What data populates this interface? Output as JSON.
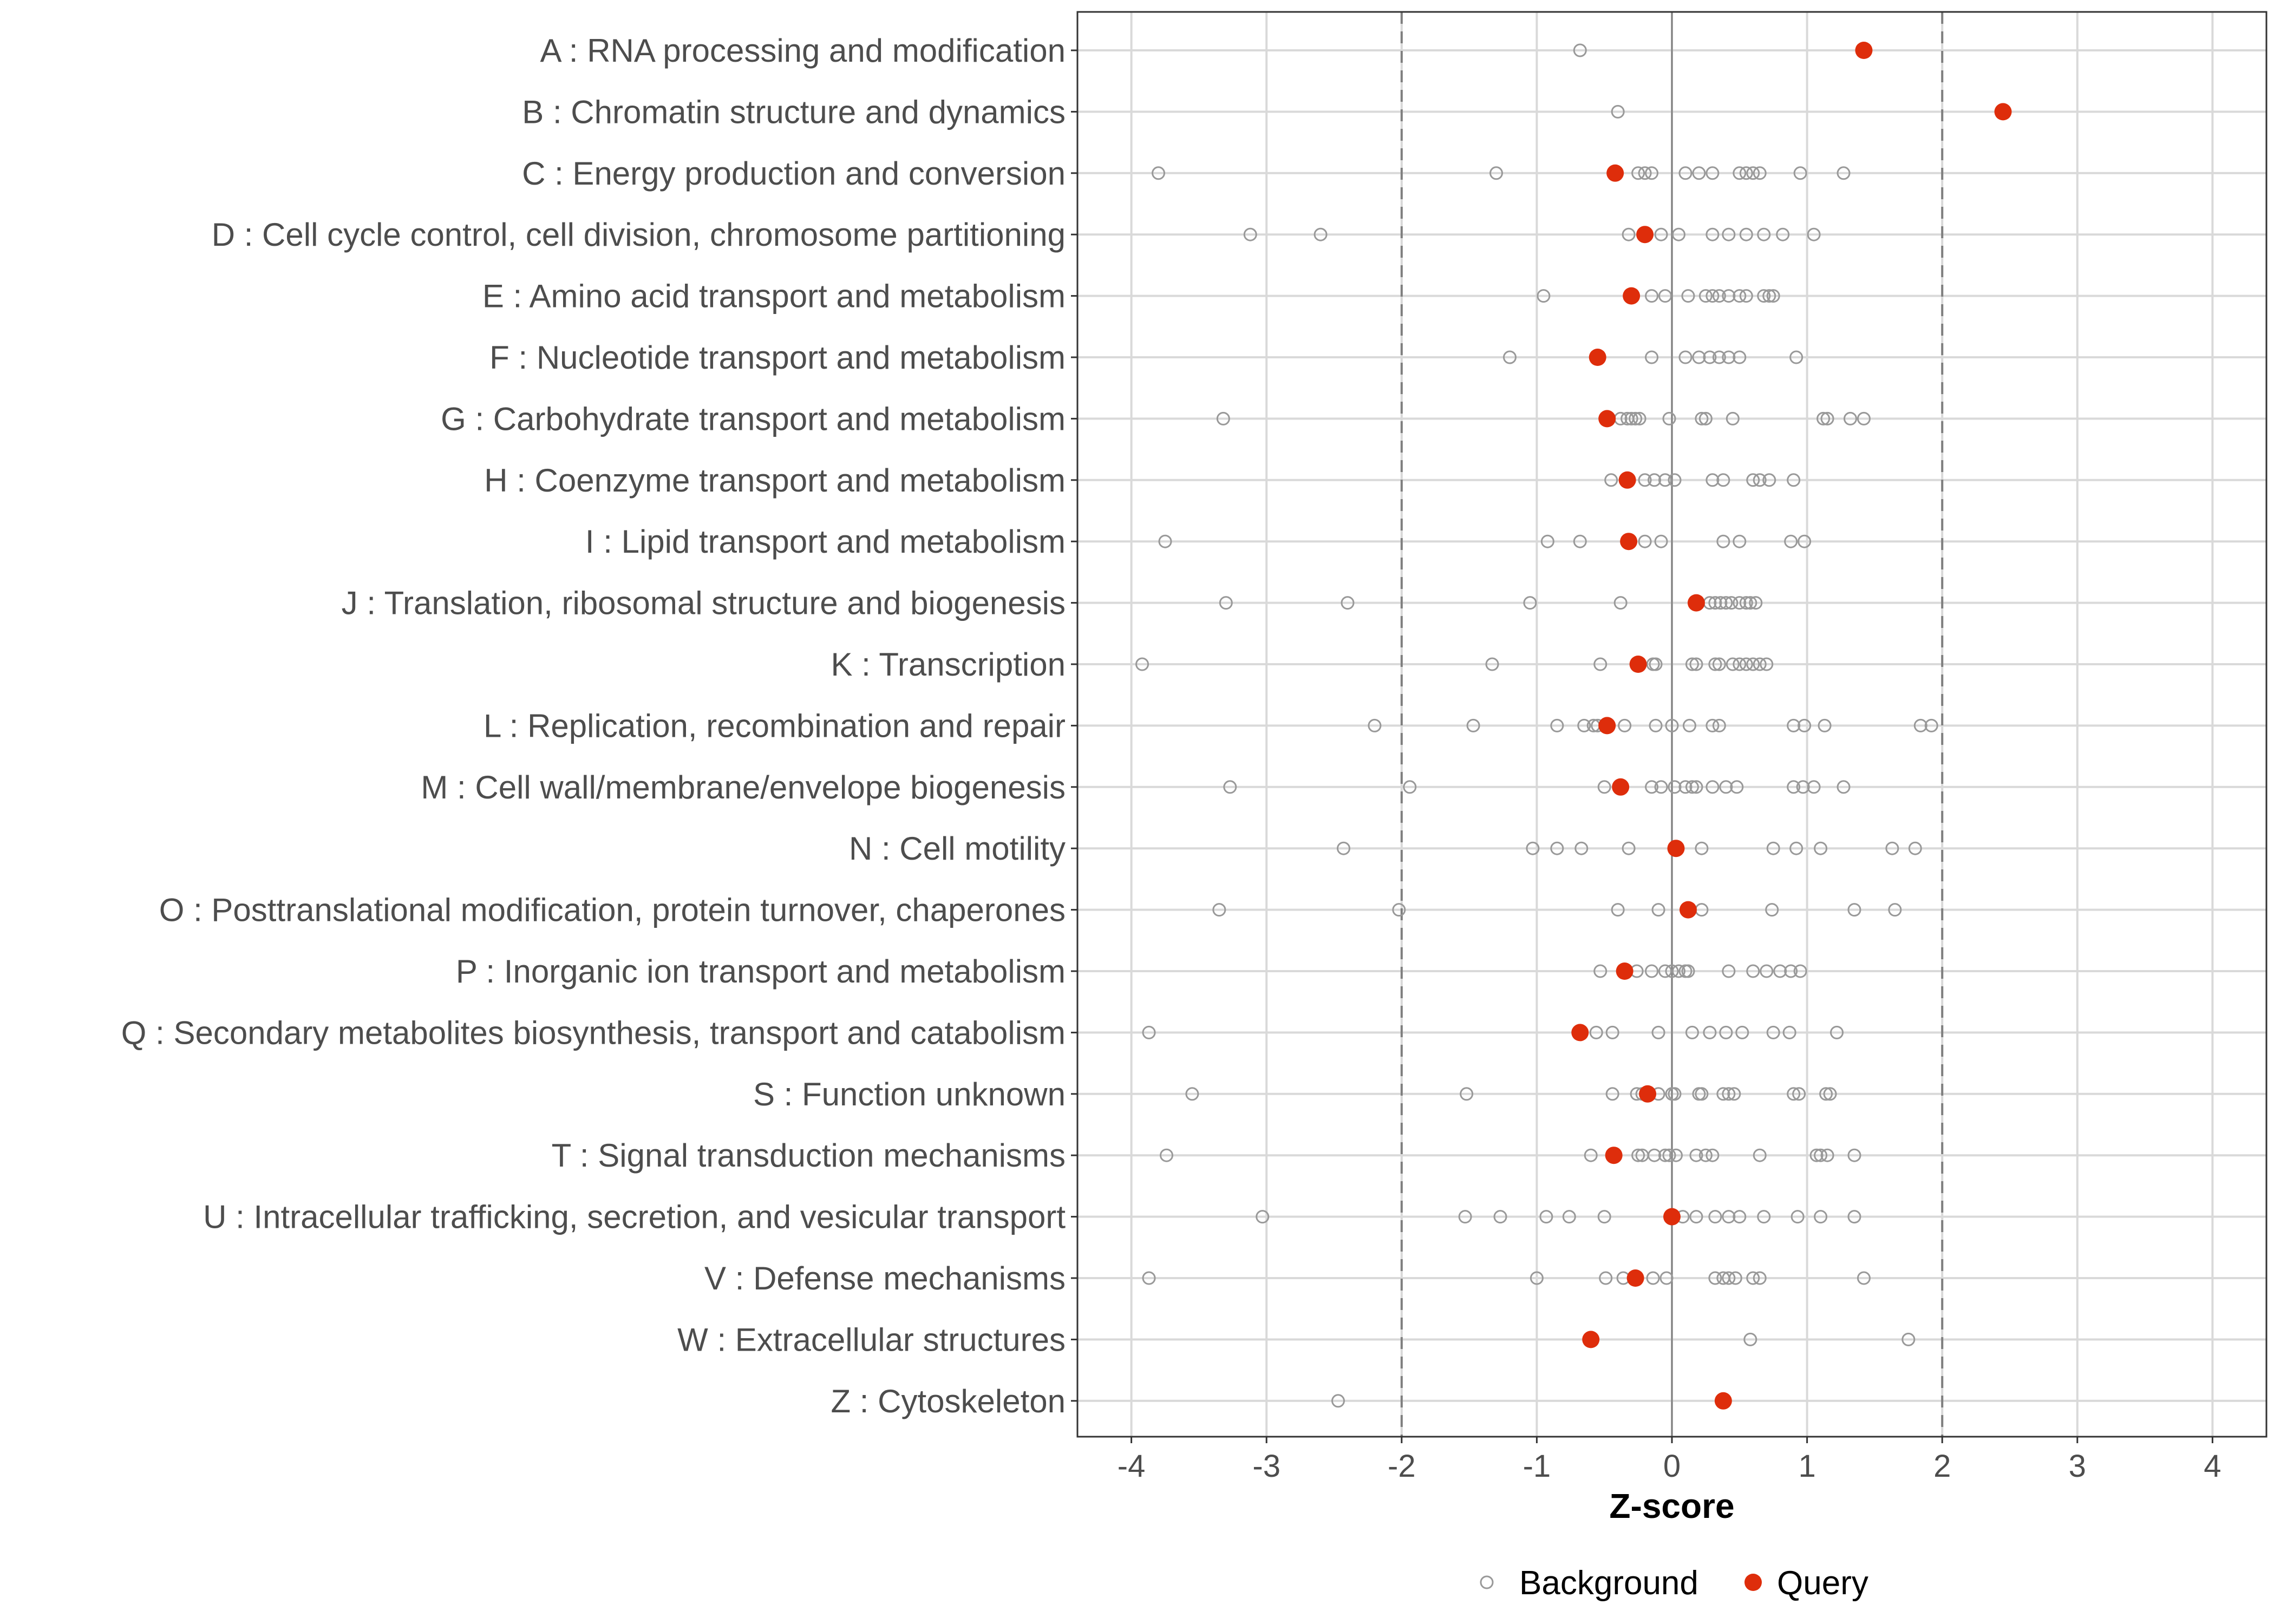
{
  "chart_data": {
    "type": "scatter",
    "xlabel": "Z-score",
    "xlim": [
      -4.4,
      4.4
    ],
    "x_ticks": [
      -4,
      -3,
      -2,
      -1,
      0,
      1,
      2,
      3,
      4
    ],
    "x_tick_labels": [
      "-4",
      "-3",
      "-2",
      "-1",
      "0",
      "1",
      "2",
      "3",
      "4"
    ],
    "threshold_lines": [
      -2,
      2
    ],
    "zero_line": 0,
    "grid": true,
    "legend": {
      "position": "bottom",
      "items": [
        {
          "label": "Background",
          "style": "open-circle"
        },
        {
          "label": "Query",
          "style": "filled-circle"
        }
      ]
    },
    "colors": {
      "query": "#de2d0b",
      "background": "#999999",
      "grid": "#d9d9d9",
      "threshold": "#7f7f7f",
      "zero": "#7f7f7f",
      "panel_border": "#333333",
      "text": "#4d4d4d"
    },
    "categories": [
      {
        "label": "A : RNA processing and modification",
        "query": 1.42,
        "background": [
          -0.68
        ]
      },
      {
        "label": "B : Chromatin structure and dynamics",
        "query": 2.45,
        "background": [
          -0.4
        ]
      },
      {
        "label": "C : Energy production and conversion",
        "query": -0.42,
        "background": [
          -3.8,
          -1.3,
          -0.25,
          -0.2,
          -0.15,
          0.1,
          0.2,
          0.3,
          0.5,
          0.55,
          0.6,
          0.65,
          0.95,
          1.27
        ]
      },
      {
        "label": "D : Cell cycle control, cell division, chromosome partitioning",
        "query": -0.2,
        "background": [
          -3.12,
          -2.6,
          -0.32,
          -0.08,
          0.05,
          0.3,
          0.42,
          0.55,
          0.68,
          0.82,
          1.05
        ]
      },
      {
        "label": "E : Amino acid transport and metabolism",
        "query": -0.3,
        "background": [
          -0.95,
          -0.15,
          -0.05,
          0.12,
          0.25,
          0.3,
          0.35,
          0.42,
          0.5,
          0.55,
          0.68,
          0.72,
          0.75
        ]
      },
      {
        "label": "F : Nucleotide transport and metabolism",
        "query": -0.55,
        "background": [
          -1.2,
          -0.15,
          0.1,
          0.2,
          0.28,
          0.35,
          0.42,
          0.5,
          0.92
        ]
      },
      {
        "label": "G : Carbohydrate transport and metabolism",
        "query": -0.48,
        "background": [
          -3.32,
          -0.38,
          -0.33,
          -0.3,
          -0.27,
          -0.24,
          -0.02,
          0.22,
          0.25,
          0.45,
          1.12,
          1.15,
          1.32,
          1.42
        ]
      },
      {
        "label": "H : Coenzyme transport and metabolism",
        "query": -0.33,
        "background": [
          -0.45,
          -0.2,
          -0.13,
          -0.05,
          0.02,
          0.3,
          0.38,
          0.6,
          0.65,
          0.72,
          0.9
        ]
      },
      {
        "label": "I : Lipid transport and metabolism",
        "query": -0.32,
        "background": [
          -3.75,
          -0.92,
          -0.68,
          -0.2,
          -0.08,
          0.38,
          0.5,
          0.88,
          0.98
        ]
      },
      {
        "label": "J : Translation, ribosomal structure and biogenesis",
        "query": 0.18,
        "background": [
          -3.3,
          -2.4,
          -1.05,
          -0.38,
          0.28,
          0.32,
          0.36,
          0.4,
          0.44,
          0.5,
          0.55,
          0.58,
          0.62
        ]
      },
      {
        "label": "K : Transcription",
        "query": -0.25,
        "background": [
          -3.92,
          -1.33,
          -0.53,
          -0.14,
          -0.12,
          0.15,
          0.18,
          0.32,
          0.35,
          0.45,
          0.5,
          0.55,
          0.6,
          0.65,
          0.7
        ]
      },
      {
        "label": "L : Replication, recombination and repair",
        "query": -0.48,
        "background": [
          -2.2,
          -1.47,
          -0.85,
          -0.65,
          -0.58,
          -0.55,
          -0.35,
          -0.12,
          0.0,
          0.13,
          0.3,
          0.35,
          0.9,
          0.98,
          1.13,
          1.84,
          1.92
        ]
      },
      {
        "label": "M : Cell wall/membrane/envelope biogenesis",
        "query": -0.38,
        "background": [
          -3.27,
          -1.94,
          -0.5,
          -0.15,
          -0.08,
          0.02,
          0.1,
          0.15,
          0.18,
          0.3,
          0.4,
          0.48,
          0.9,
          0.97,
          1.05,
          1.27
        ]
      },
      {
        "label": "N : Cell motility",
        "query": 0.03,
        "background": [
          -2.43,
          -1.03,
          -0.85,
          -0.67,
          -0.32,
          0.22,
          0.75,
          0.92,
          1.1,
          1.63,
          1.8
        ]
      },
      {
        "label": "O : Posttranslational modification, protein turnover, chaperones",
        "query": 0.12,
        "background": [
          -3.35,
          -2.02,
          -0.4,
          -0.1,
          0.22,
          0.74,
          1.35,
          1.65
        ]
      },
      {
        "label": "P : Inorganic ion transport and metabolism",
        "query": -0.35,
        "background": [
          -0.53,
          -0.26,
          -0.15,
          -0.05,
          0.0,
          0.05,
          0.1,
          0.12,
          0.42,
          0.6,
          0.7,
          0.8,
          0.88,
          0.95
        ]
      },
      {
        "label": "Q : Secondary metabolites biosynthesis, transport and catabolism",
        "query": -0.68,
        "background": [
          -3.87,
          -0.56,
          -0.44,
          -0.1,
          0.15,
          0.28,
          0.4,
          0.52,
          0.75,
          0.87,
          1.22
        ]
      },
      {
        "label": "S : Function unknown",
        "query": -0.18,
        "background": [
          -3.55,
          -1.52,
          -0.44,
          -0.26,
          -0.22,
          -0.1,
          0.0,
          0.02,
          0.2,
          0.22,
          0.38,
          0.42,
          0.46,
          0.9,
          0.94,
          1.14,
          1.17
        ]
      },
      {
        "label": "T : Signal transduction mechanisms",
        "query": -0.43,
        "background": [
          -3.74,
          -0.6,
          -0.25,
          -0.22,
          -0.13,
          -0.05,
          -0.02,
          0.03,
          0.18,
          0.25,
          0.3,
          0.65,
          1.07,
          1.1,
          1.15,
          1.35
        ]
      },
      {
        "label": "U : Intracellular trafficking, secretion, and vesicular transport",
        "query": 0.0,
        "background": [
          -3.03,
          -1.53,
          -1.27,
          -0.93,
          -0.76,
          -0.5,
          0.08,
          0.18,
          0.32,
          0.42,
          0.5,
          0.68,
          0.93,
          1.1,
          1.35
        ]
      },
      {
        "label": "V : Defense mechanisms",
        "query": -0.27,
        "background": [
          -3.87,
          -1.0,
          -0.49,
          -0.36,
          -0.14,
          -0.04,
          0.32,
          0.38,
          0.42,
          0.47,
          0.6,
          0.65,
          1.42
        ]
      },
      {
        "label": "W : Extracellular structures",
        "query": -0.6,
        "background": [
          0.58,
          1.75
        ]
      },
      {
        "label": "Z : Cytoskeleton",
        "query": 0.38,
        "background": [
          -2.47
        ]
      }
    ]
  }
}
